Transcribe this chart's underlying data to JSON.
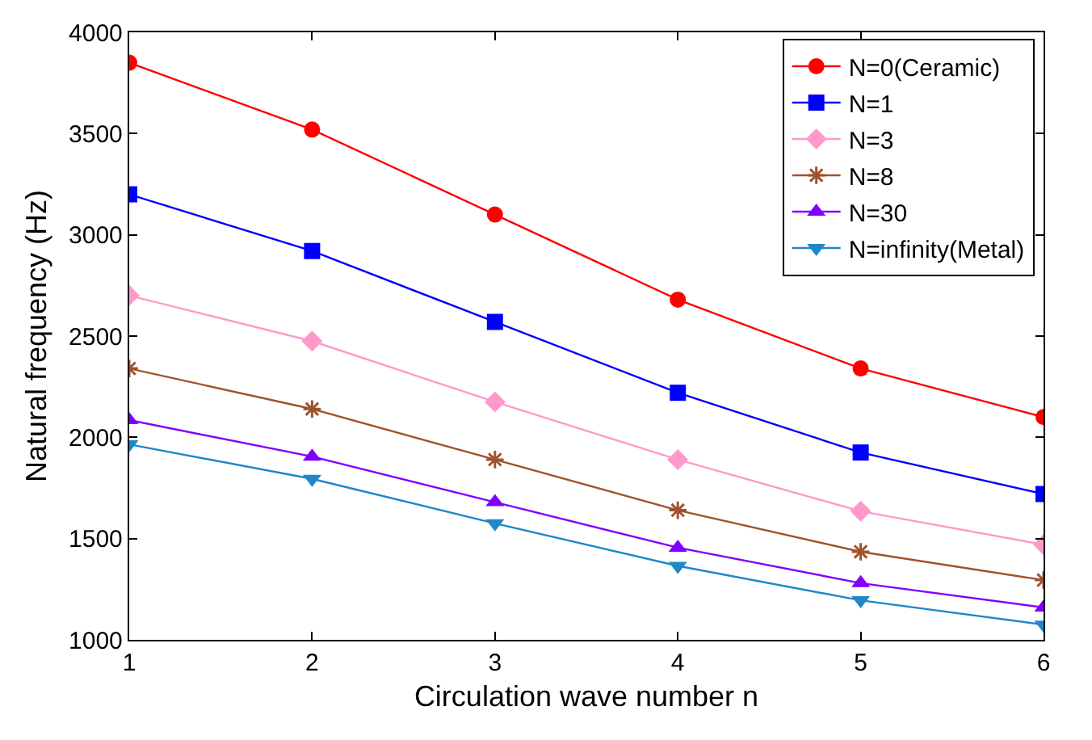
{
  "chart_data": {
    "type": "line",
    "xlabel": "Circulation wave number n",
    "ylabel": "Natural frequency (Hz)",
    "x": [
      1,
      2,
      3,
      4,
      5,
      6
    ],
    "xlim": [
      1,
      6
    ],
    "xticks": [
      1,
      2,
      3,
      4,
      5,
      6
    ],
    "ylim": [
      1000,
      4000
    ],
    "yticks": [
      1000,
      1500,
      2000,
      2500,
      3000,
      3500,
      4000
    ],
    "grid": false,
    "legend": "top right",
    "line_style": "solid",
    "series": [
      {
        "name": "N=0(Ceramic)",
        "color": "#ff0000",
        "marker": "circle",
        "values": [
          3850,
          3520,
          3100,
          2680,
          2340,
          2100
        ]
      },
      {
        "name": "N=1",
        "color": "#0000ff",
        "marker": "square",
        "values": [
          3200,
          2920,
          2570,
          2220,
          1925,
          1720
        ]
      },
      {
        "name": "N=3",
        "color": "#ff99cc",
        "marker": "diamond",
        "values": [
          2700,
          2475,
          2175,
          1890,
          1635,
          1470
        ]
      },
      {
        "name": "N=8",
        "color": "#a0522d",
        "marker": "cross",
        "values": [
          2340,
          2140,
          1890,
          1640,
          1435,
          1295
        ]
      },
      {
        "name": "N=30",
        "color": "#8000ff",
        "marker": "triangle",
        "values": [
          2085,
          1905,
          1680,
          1455,
          1280,
          1160
        ]
      },
      {
        "name": "N=infinity(Metal)",
        "color": "#1e88c8",
        "marker": "triangle-down",
        "values": [
          1965,
          1795,
          1575,
          1365,
          1195,
          1075
        ]
      }
    ]
  }
}
